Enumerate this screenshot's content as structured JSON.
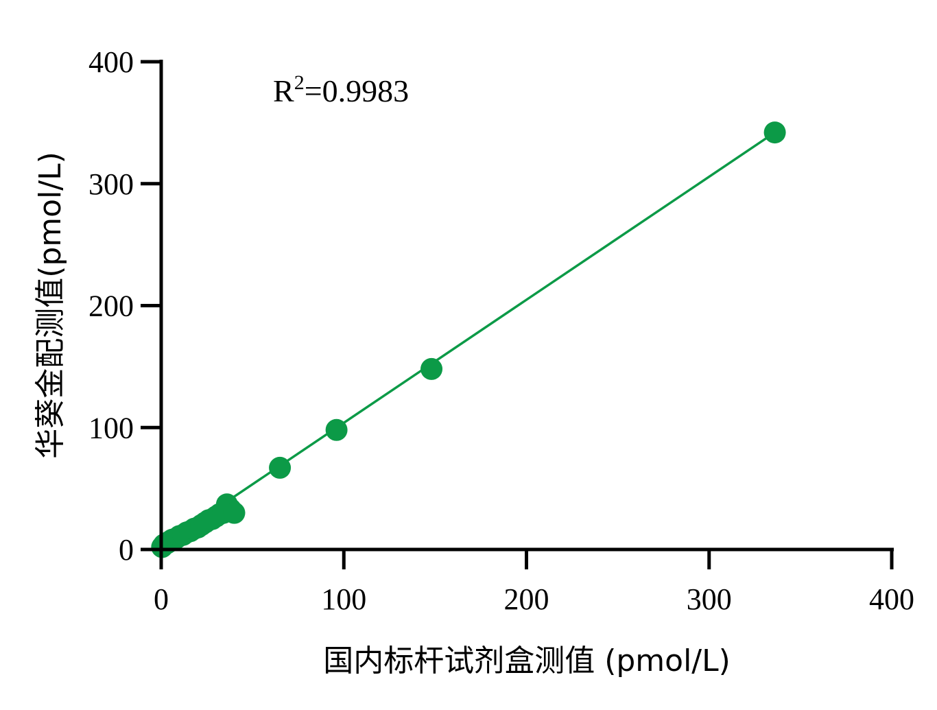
{
  "chart_data": {
    "type": "scatter",
    "xlabel": "国内标杆试剂盒测值 (pmol/L)",
    "ylabel": "华葵金配测值(pmol/L)",
    "xlim": [
      0,
      400
    ],
    "ylim": [
      0,
      400
    ],
    "x_ticks": [
      "0",
      "100",
      "200",
      "300",
      "400"
    ],
    "y_ticks": [
      "0",
      "100",
      "200",
      "300",
      "400"
    ],
    "annotation": {
      "base": "R",
      "sup": "2",
      "rest": "=0.9983"
    },
    "grid": false,
    "marker_color": "#0c9a47",
    "line_color": "#0c9a47",
    "fit_line": {
      "x": [
        0,
        336
      ],
      "y": [
        3,
        342
      ]
    },
    "points": {
      "x": [
        0.5,
        1.5,
        3,
        4,
        5,
        6,
        8,
        10,
        12,
        14,
        16,
        18,
        20,
        22,
        24,
        26,
        28,
        30,
        32,
        34,
        36,
        38,
        40,
        65,
        96,
        148,
        336
      ],
      "y": [
        2,
        4,
        5,
        6,
        7,
        8,
        9,
        11,
        12,
        14,
        15,
        17,
        18,
        20,
        22,
        24,
        25,
        27,
        29,
        30,
        37,
        33,
        30,
        67,
        98,
        148,
        342
      ]
    }
  }
}
